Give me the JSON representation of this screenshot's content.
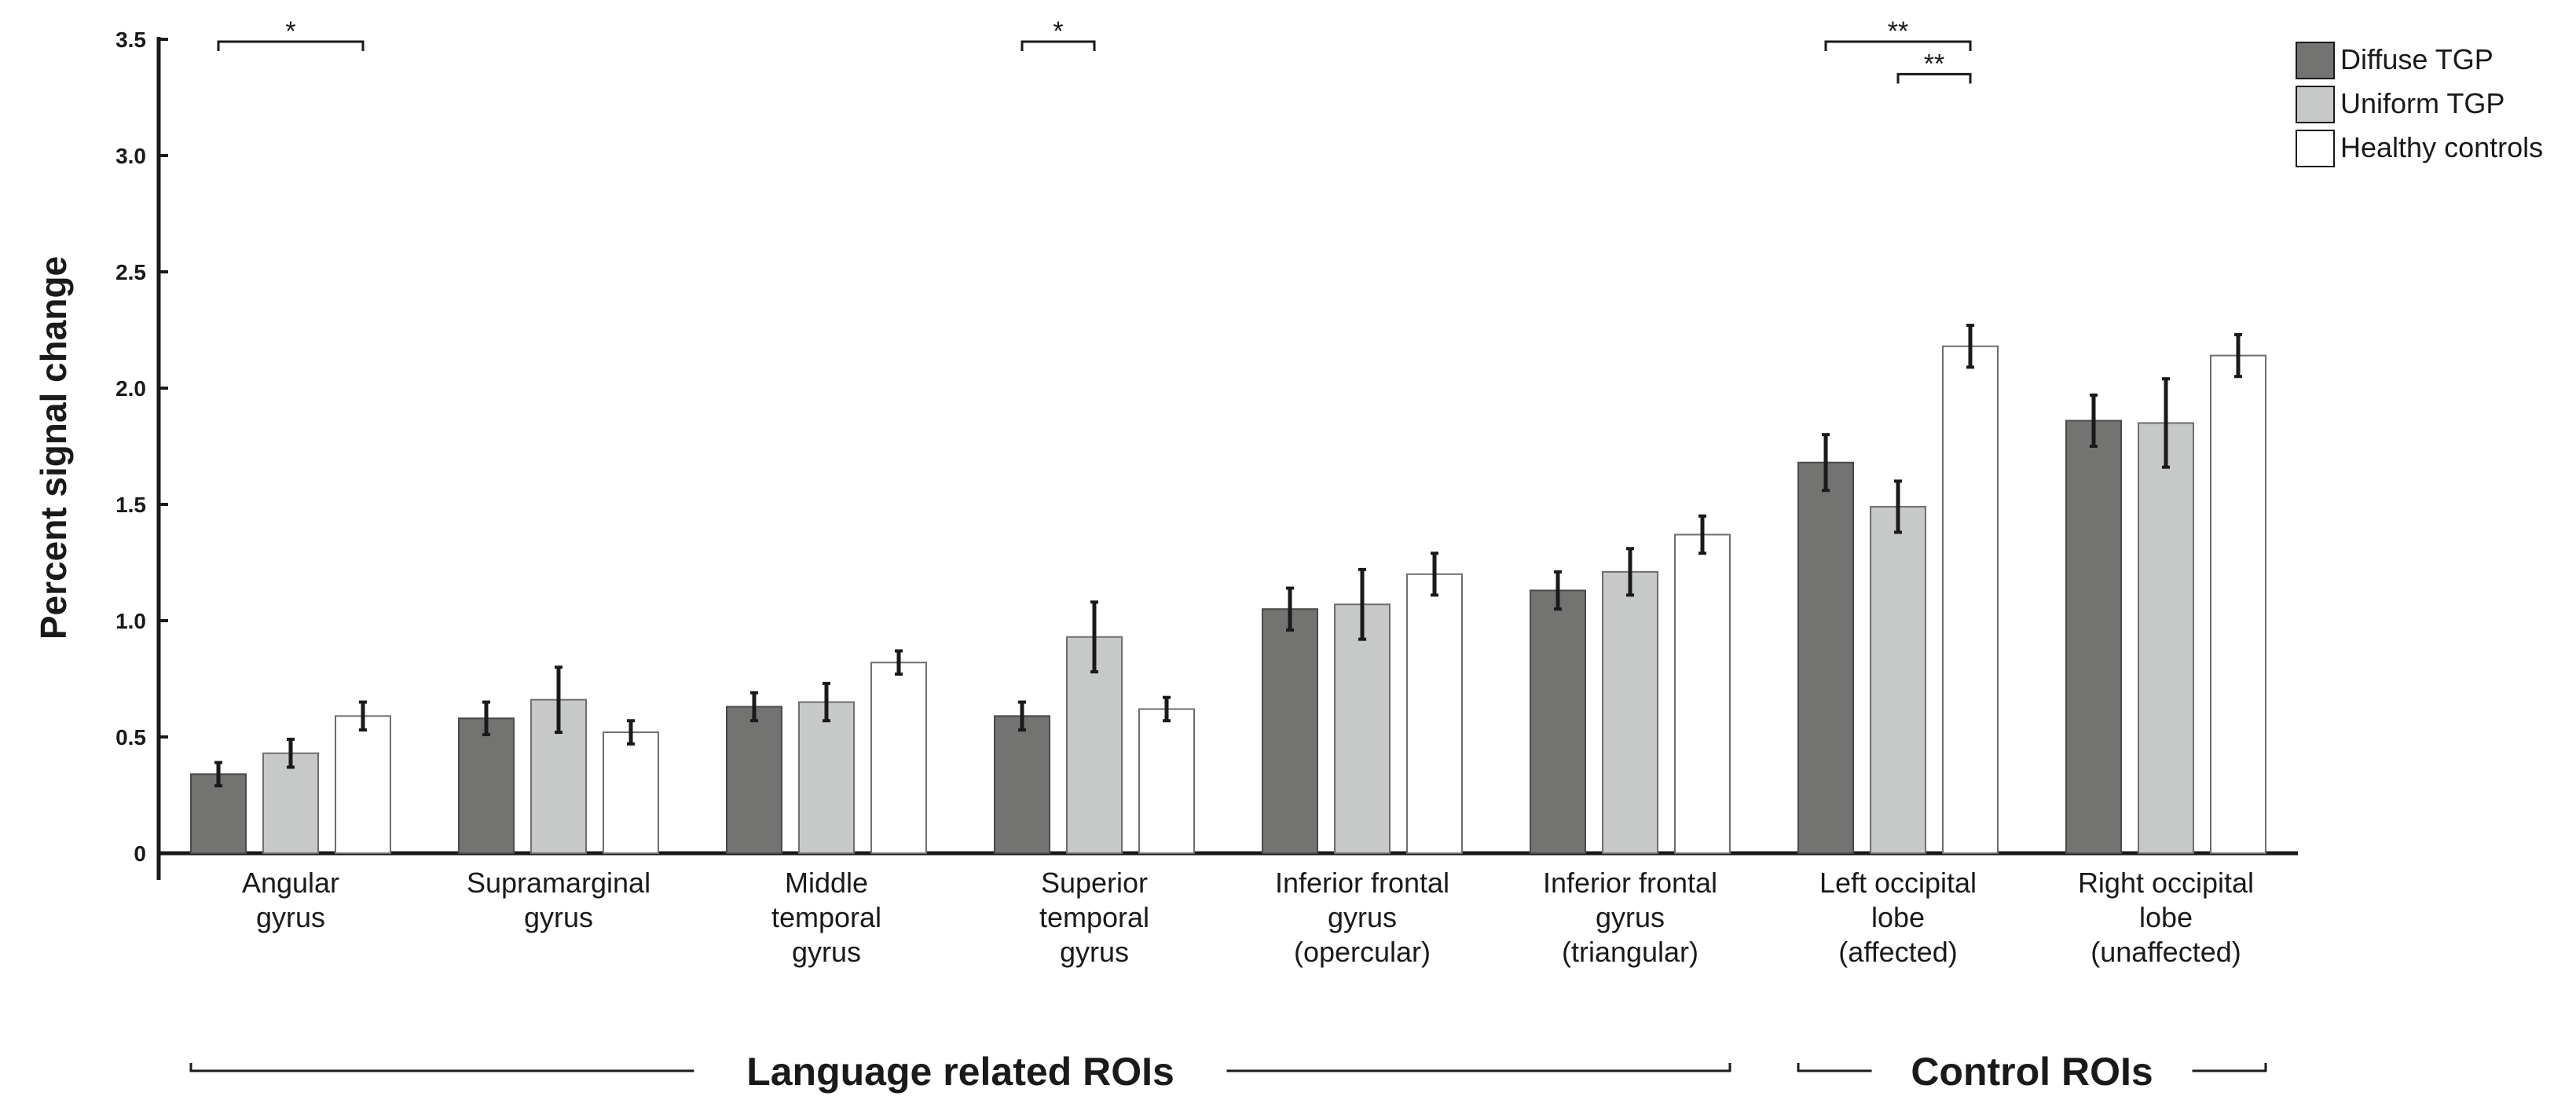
{
  "chart_data": {
    "type": "bar",
    "title": "",
    "ylabel": "Percent signal change",
    "xlabel": "",
    "ylim": [
      0,
      3.5
    ],
    "yticks": [
      "0",
      "0.5",
      "1.0",
      "1.5",
      "2.0",
      "2.5",
      "3.0",
      "3.5"
    ],
    "ytick_values": [
      0,
      0.5,
      1.0,
      1.5,
      2.0,
      2.5,
      3.0,
      3.5
    ],
    "categories": [
      [
        "Angular",
        "gyrus"
      ],
      [
        "Supramarginal",
        "gyrus"
      ],
      [
        "Middle",
        "temporal",
        "gyrus"
      ],
      [
        "Superior",
        "temporal",
        "gyrus"
      ],
      [
        "Inferior frontal",
        "gyrus",
        "(opercular)"
      ],
      [
        "Inferior frontal",
        "gyrus",
        "(triangular)"
      ],
      [
        "Left occipital",
        "lobe",
        "(affected)"
      ],
      [
        "Right occipital",
        "lobe",
        "(unaffected)"
      ]
    ],
    "series": [
      {
        "name": "Diffuse TGP",
        "color": "#737471",
        "values": [
          0.34,
          0.58,
          0.63,
          0.59,
          1.05,
          1.13,
          1.68,
          1.86
        ],
        "errors": [
          0.05,
          0.07,
          0.06,
          0.06,
          0.09,
          0.08,
          0.12,
          0.11
        ]
      },
      {
        "name": "Uniform TGP",
        "color": "#c6c9c7",
        "values": [
          0.43,
          0.66,
          0.65,
          0.93,
          1.07,
          1.21,
          1.49,
          1.85
        ],
        "errors": [
          0.06,
          0.14,
          0.08,
          0.15,
          0.15,
          0.1,
          0.11,
          0.19
        ]
      },
      {
        "name": "Healthy controls",
        "color": "#ffffff",
        "values": [
          0.59,
          0.52,
          0.82,
          0.62,
          1.2,
          1.37,
          2.18,
          2.14
        ],
        "errors": [
          0.06,
          0.05,
          0.05,
          0.05,
          0.09,
          0.08,
          0.09,
          0.09
        ]
      }
    ],
    "significance": [
      {
        "group": 0,
        "from_series": 0,
        "to_series": 2,
        "y": 3.49,
        "label": "*"
      },
      {
        "group": 3,
        "from_series": 0,
        "to_series": 1,
        "y": 3.49,
        "label": "*"
      },
      {
        "group": 6,
        "from_series": 0,
        "to_series": 2,
        "y": 3.49,
        "label": "**"
      },
      {
        "group": 6,
        "from_series": 1,
        "to_series": 2,
        "y": 3.35,
        "label": "**"
      }
    ],
    "groups": [
      {
        "label": "Language related ROIs",
        "from": 0,
        "to": 5
      },
      {
        "label": "Control ROIs",
        "from": 6,
        "to": 7
      }
    ],
    "legend_position": "top-right"
  }
}
